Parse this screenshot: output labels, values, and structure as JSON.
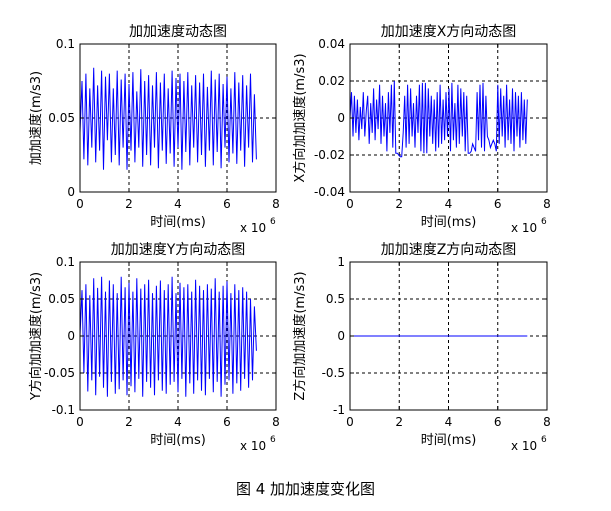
{
  "caption": "图 4 加加速度变化图",
  "chart_data": [
    {
      "type": "line",
      "title": "加加速度动态图",
      "xlabel": "时间(ms)",
      "ylabel": "加加速度(m/s3)",
      "x_exponent": "x 10",
      "x_exponent_power": "6",
      "xlim": [
        0,
        8
      ],
      "ylim": [
        0,
        0.1
      ],
      "xticks": [
        "0",
        "2",
        "4",
        "6",
        "8"
      ],
      "yticks": [
        "0",
        "0.05",
        "0.1"
      ],
      "xtick_values": [
        0,
        2,
        4,
        6,
        8
      ],
      "ytick_values": [
        0,
        0.05,
        0.1
      ],
      "grid": true,
      "color": "#0000ff",
      "series": [
        {
          "x": [
            0.0,
            0.08,
            0.16,
            0.24,
            0.32,
            0.4,
            0.48,
            0.56,
            0.64,
            0.72,
            0.8,
            0.88,
            0.96,
            1.04,
            1.12,
            1.2,
            1.28,
            1.36,
            1.44,
            1.52,
            1.6,
            1.68,
            1.76,
            1.84,
            1.92,
            2.0,
            2.08,
            2.16,
            2.24,
            2.32,
            2.4,
            2.48,
            2.56,
            2.64,
            2.72,
            2.8,
            2.88,
            2.96,
            3.04,
            3.12,
            3.2,
            3.28,
            3.36,
            3.44,
            3.52,
            3.6,
            3.68,
            3.76,
            3.84,
            3.92,
            4.0,
            4.08,
            4.16,
            4.24,
            4.32,
            4.4,
            4.48,
            4.56,
            4.64,
            4.72,
            4.8,
            4.88,
            4.96,
            5.04,
            5.12,
            5.2,
            5.28,
            5.36,
            5.44,
            5.52,
            5.6,
            5.68,
            5.76,
            5.84,
            5.92,
            6.0,
            6.08,
            6.16,
            6.24,
            6.32,
            6.4,
            6.48,
            6.56,
            6.64,
            6.72,
            6.8,
            6.88,
            6.96,
            7.04,
            7.12,
            7.2
          ],
          "y": [
            0.04,
            0.075,
            0.022,
            0.08,
            0.018,
            0.07,
            0.03,
            0.084,
            0.02,
            0.072,
            0.028,
            0.082,
            0.015,
            0.078,
            0.035,
            0.08,
            0.02,
            0.07,
            0.025,
            0.082,
            0.018,
            0.076,
            0.03,
            0.08,
            0.015,
            0.073,
            0.028,
            0.081,
            0.02,
            0.068,
            0.03,
            0.083,
            0.017,
            0.075,
            0.025,
            0.079,
            0.018,
            0.072,
            0.03,
            0.081,
            0.016,
            0.074,
            0.028,
            0.08,
            0.019,
            0.07,
            0.026,
            0.082,
            0.017,
            0.077,
            0.03,
            0.08,
            0.015,
            0.075,
            0.027,
            0.081,
            0.018,
            0.072,
            0.03,
            0.079,
            0.02,
            0.074,
            0.025,
            0.08,
            0.017,
            0.071,
            0.028,
            0.082,
            0.018,
            0.076,
            0.027,
            0.08,
            0.016,
            0.073,
            0.03,
            0.078,
            0.02,
            0.07,
            0.026,
            0.081,
            0.019,
            0.074,
            0.028,
            0.079,
            0.017,
            0.072,
            0.03,
            0.08,
            0.02,
            0.066,
            0.022
          ]
        }
      ]
    },
    {
      "type": "line",
      "title": "加加速度X方向动态图",
      "xlabel": "时间(ms)",
      "ylabel": "X方向加加速度(m/s3)",
      "x_exponent": "x 10",
      "x_exponent_power": "6",
      "xlim": [
        0,
        8
      ],
      "ylim": [
        -0.04,
        0.04
      ],
      "xticks": [
        "0",
        "2",
        "4",
        "6",
        "8"
      ],
      "yticks": [
        "-0.04",
        "-0.02",
        "0",
        "0.02",
        "0.04"
      ],
      "xtick_values": [
        0,
        2,
        4,
        6,
        8
      ],
      "ytick_values": [
        -0.04,
        -0.02,
        0,
        0.02,
        0.04
      ],
      "grid": true,
      "color": "#0000ff",
      "series": [
        {
          "x": [
            0.0,
            0.06,
            0.12,
            0.18,
            0.24,
            0.3,
            0.36,
            0.42,
            0.48,
            0.54,
            0.6,
            0.66,
            0.72,
            0.78,
            0.84,
            0.9,
            0.96,
            1.02,
            1.08,
            1.14,
            1.2,
            1.26,
            1.32,
            1.38,
            1.44,
            1.5,
            1.56,
            1.62,
            1.68,
            1.74,
            1.8,
            1.86,
            1.92,
            1.98,
            2.04,
            2.1,
            2.16,
            2.22,
            2.28,
            2.34,
            2.4,
            2.46,
            2.52,
            2.58,
            2.64,
            2.7,
            2.76,
            2.82,
            2.88,
            2.94,
            3.0,
            3.06,
            3.12,
            3.18,
            3.24,
            3.3,
            3.36,
            3.42,
            3.48,
            3.54,
            3.6,
            3.66,
            3.72,
            3.78,
            3.84,
            3.9,
            3.96,
            4.02,
            4.08,
            4.14,
            4.2,
            4.26,
            4.32,
            4.38,
            4.44,
            4.5,
            4.56,
            4.62,
            4.68,
            4.74,
            4.8,
            4.86,
            4.92,
            4.98,
            5.04,
            5.1,
            5.16,
            5.22,
            5.28,
            5.34,
            5.4,
            5.46,
            5.52,
            5.58,
            5.64,
            5.7,
            5.76,
            5.82,
            5.88,
            5.94,
            6.0,
            6.06,
            6.12,
            6.18,
            6.24,
            6.3,
            6.36,
            6.42,
            6.48,
            6.54,
            6.6,
            6.66,
            6.72,
            6.78,
            6.84,
            6.9,
            6.96,
            7.02,
            7.08,
            7.14,
            7.2
          ],
          "y": [
            0.0,
            0.014,
            -0.01,
            0.012,
            -0.008,
            0.01,
            -0.012,
            0.006,
            -0.006,
            0.014,
            -0.01,
            0.004,
            0.012,
            -0.014,
            0.008,
            -0.008,
            0.016,
            -0.012,
            0.01,
            -0.006,
            0.018,
            -0.014,
            0.012,
            -0.01,
            0.008,
            -0.018,
            0.014,
            -0.008,
            0.018,
            -0.016,
            0.02,
            -0.019,
            -0.019,
            -0.02,
            -0.021,
            -0.021,
            -0.008,
            0.012,
            -0.016,
            0.018,
            -0.014,
            0.016,
            -0.01,
            0.008,
            -0.016,
            0.012,
            -0.008,
            0.018,
            -0.018,
            0.019,
            -0.019,
            0.019,
            -0.019,
            0.016,
            -0.01,
            0.012,
            -0.014,
            0.01,
            -0.018,
            0.014,
            -0.016,
            0.018,
            -0.014,
            0.01,
            -0.012,
            0.014,
            -0.01,
            0.016,
            -0.018,
            0.019,
            -0.012,
            0.008,
            -0.016,
            0.018,
            -0.014,
            0.016,
            -0.01,
            0.014,
            -0.018,
            0.012,
            -0.019,
            -0.019,
            -0.018,
            -0.014,
            -0.016,
            -0.018,
            0.014,
            -0.012,
            0.018,
            -0.016,
            0.019,
            -0.018,
            0.012,
            -0.01,
            -0.012,
            -0.016,
            -0.014,
            -0.012,
            -0.014,
            -0.018,
            0.018,
            -0.014,
            0.016,
            -0.01,
            0.012,
            -0.016,
            0.018,
            -0.012,
            0.01,
            -0.014,
            0.016,
            -0.018,
            0.014,
            -0.01,
            0.012,
            -0.016,
            0.014,
            -0.012,
            0.01,
            -0.014,
            0.01
          ]
        }
      ]
    },
    {
      "type": "line",
      "title": "加加速度Y方向动态图",
      "xlabel": "时间(ms)",
      "ylabel": "Y方向加加速度(m/s3)",
      "x_exponent": "x 10",
      "x_exponent_power": "6",
      "xlim": [
        0,
        8
      ],
      "ylim": [
        -0.1,
        0.1
      ],
      "xticks": [
        "0",
        "2",
        "4",
        "6",
        "8"
      ],
      "yticks": [
        "-0.1",
        "-0.05",
        "0",
        "0.05",
        "0.1"
      ],
      "xtick_values": [
        0,
        2,
        4,
        6,
        8
      ],
      "ytick_values": [
        -0.1,
        -0.05,
        0,
        0.05,
        0.1
      ],
      "grid": true,
      "color": "#0000ff",
      "series": [
        {
          "x": [
            0.0,
            0.08,
            0.16,
            0.24,
            0.32,
            0.4,
            0.48,
            0.56,
            0.64,
            0.72,
            0.8,
            0.88,
            0.96,
            1.04,
            1.12,
            1.2,
            1.28,
            1.36,
            1.44,
            1.52,
            1.6,
            1.68,
            1.76,
            1.84,
            1.92,
            2.0,
            2.08,
            2.16,
            2.24,
            2.32,
            2.4,
            2.48,
            2.56,
            2.64,
            2.72,
            2.8,
            2.88,
            2.96,
            3.04,
            3.12,
            3.2,
            3.28,
            3.36,
            3.44,
            3.52,
            3.6,
            3.68,
            3.76,
            3.84,
            3.92,
            4.0,
            4.08,
            4.16,
            4.24,
            4.32,
            4.4,
            4.48,
            4.56,
            4.64,
            4.72,
            4.8,
            4.88,
            4.96,
            5.04,
            5.12,
            5.2,
            5.28,
            5.36,
            5.44,
            5.52,
            5.6,
            5.68,
            5.76,
            5.84,
            5.92,
            6.0,
            6.08,
            6.16,
            6.24,
            6.32,
            6.4,
            6.48,
            6.56,
            6.64,
            6.72,
            6.8,
            6.88,
            6.96,
            7.04,
            7.12,
            7.2
          ],
          "y": [
            0.0,
            0.062,
            -0.05,
            0.07,
            -0.075,
            0.055,
            -0.06,
            0.078,
            -0.08,
            0.065,
            -0.055,
            0.08,
            -0.07,
            0.06,
            -0.082,
            0.075,
            -0.062,
            0.07,
            -0.078,
            0.058,
            -0.072,
            0.08,
            -0.06,
            0.066,
            -0.08,
            0.072,
            -0.068,
            0.06,
            -0.076,
            0.078,
            -0.058,
            0.064,
            -0.082,
            0.07,
            -0.062,
            0.076,
            -0.07,
            0.058,
            -0.08,
            0.068,
            -0.06,
            0.075,
            -0.074,
            0.062,
            -0.078,
            0.07,
            -0.066,
            0.08,
            -0.062,
            0.058,
            -0.076,
            0.072,
            -0.058,
            0.066,
            -0.082,
            0.07,
            -0.064,
            0.06,
            -0.078,
            0.076,
            -0.06,
            0.068,
            -0.074,
            0.062,
            -0.08,
            0.07,
            -0.058,
            0.064,
            -0.076,
            0.078,
            -0.062,
            0.06,
            -0.082,
            0.068,
            -0.066,
            0.074,
            -0.06,
            0.058,
            -0.078,
            0.07,
            -0.064,
            0.062,
            -0.074,
            0.066,
            -0.058,
            0.06,
            -0.07,
            0.05,
            -0.06,
            0.04,
            -0.02
          ]
        }
      ]
    },
    {
      "type": "line",
      "title": "加加速度Z方向动态图",
      "xlabel": "时间(ms)",
      "ylabel": "Z方向加加速度(m/s3)",
      "x_exponent": "x 10",
      "x_exponent_power": "6",
      "xlim": [
        0,
        8
      ],
      "ylim": [
        -1,
        1
      ],
      "xticks": [
        "0",
        "2",
        "4",
        "6",
        "8"
      ],
      "yticks": [
        "-1",
        "-0.5",
        "0",
        "0.5",
        "1"
      ],
      "xtick_values": [
        0,
        2,
        4,
        6,
        8
      ],
      "ytick_values": [
        -1,
        -0.5,
        0,
        0.5,
        1
      ],
      "grid": true,
      "color": "#0000ff",
      "series": [
        {
          "x": [
            0,
            7.2
          ],
          "y": [
            0,
            0
          ]
        }
      ]
    }
  ]
}
